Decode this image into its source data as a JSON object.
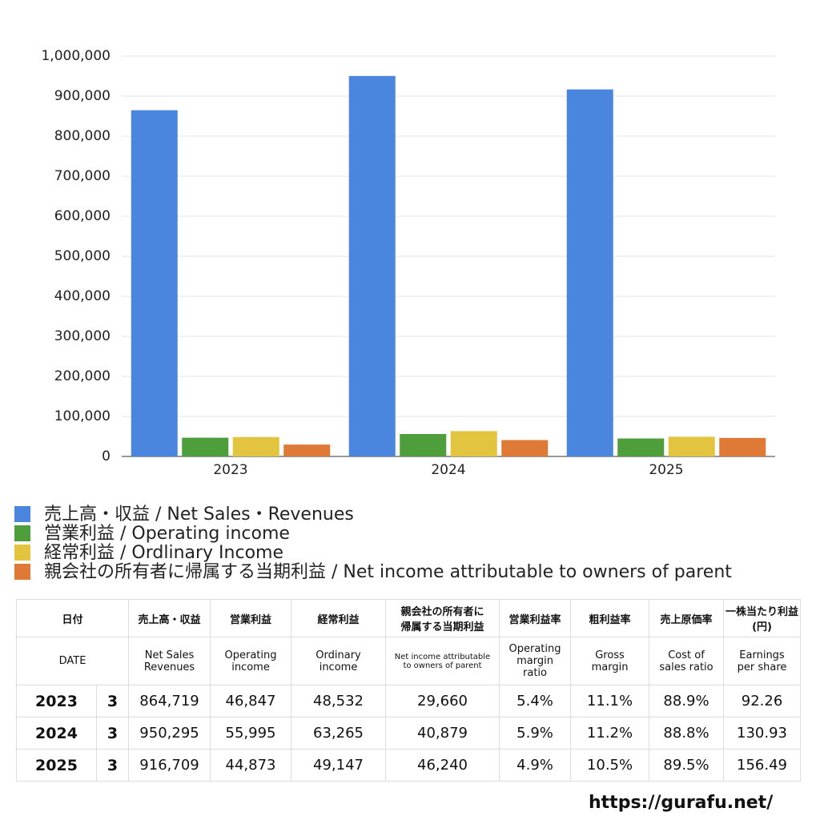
{
  "chart_data": {
    "type": "bar",
    "categories": [
      "2023",
      "2024",
      "2025"
    ],
    "series": [
      {
        "name": "売上高・収益 / Net Sales・Revenues",
        "color": "#4a86de",
        "values": [
          864719,
          950295,
          916709
        ]
      },
      {
        "name": "営業利益 / Operating income",
        "color": "#4f9e3c",
        "values": [
          46847,
          55995,
          44873
        ]
      },
      {
        "name": "経常利益 / Ordlinary Income",
        "color": "#e2c43e",
        "values": [
          48532,
          63265,
          49147
        ]
      },
      {
        "name": "親会社の所有者に帰属する当期利益 / Net income attributable to owners of parent",
        "color": "#de7a36",
        "values": [
          29660,
          40879,
          46240
        ]
      }
    ],
    "ylim": [
      0,
      1000000
    ],
    "yticks": [
      0,
      {
        "value": 100000,
        "label": "100,000"
      },
      {
        "value": 200000,
        "label": "200,000"
      },
      {
        "value": 300000,
        "label": "300,000"
      },
      {
        "value": 400000,
        "label": "400,000"
      },
      {
        "value": 500000,
        "label": "500,000"
      },
      {
        "value": 600000,
        "label": "600,000"
      },
      {
        "value": 700000,
        "label": "700,000"
      },
      {
        "value": 800000,
        "label": "800,000"
      },
      {
        "value": 900000,
        "label": "900,000"
      },
      {
        "value": 1000000,
        "label": "1,000,000"
      }
    ],
    "grid": true
  },
  "table": {
    "header_ja": [
      "日付",
      "売上高・収益",
      "営業利益",
      "経常利益",
      [
        "親会社の所有者に",
        "帰属する当期利益"
      ],
      "営業利益率",
      "粗利益率",
      "売上原価率",
      [
        "一株当たり利益",
        "(円)"
      ]
    ],
    "header_en": [
      "DATE",
      [
        "Net Sales",
        "Revenues"
      ],
      [
        "Operating",
        "income"
      ],
      [
        "Ordinary",
        "income"
      ],
      [
        "Net income attributable",
        "to owners of parent"
      ],
      [
        "Operating",
        "margin",
        "ratio"
      ],
      [
        "Gross",
        "margin"
      ],
      [
        "Cost of",
        "sales ratio"
      ],
      [
        "Earnings",
        "per share"
      ]
    ],
    "rows": [
      [
        "2023",
        "3",
        "864,719",
        "46,847",
        "48,532",
        "29,660",
        "5.4%",
        "11.1%",
        "88.9%",
        "92.26"
      ],
      [
        "2024",
        "3",
        "950,295",
        "55,995",
        "63,265",
        "40,879",
        "5.9%",
        "11.2%",
        "88.8%",
        "130.93"
      ],
      [
        "2025",
        "3",
        "916,709",
        "44,873",
        "49,147",
        "46,240",
        "4.9%",
        "10.5%",
        "89.5%",
        "156.49"
      ]
    ]
  },
  "footer": "https://gurafu.net/"
}
